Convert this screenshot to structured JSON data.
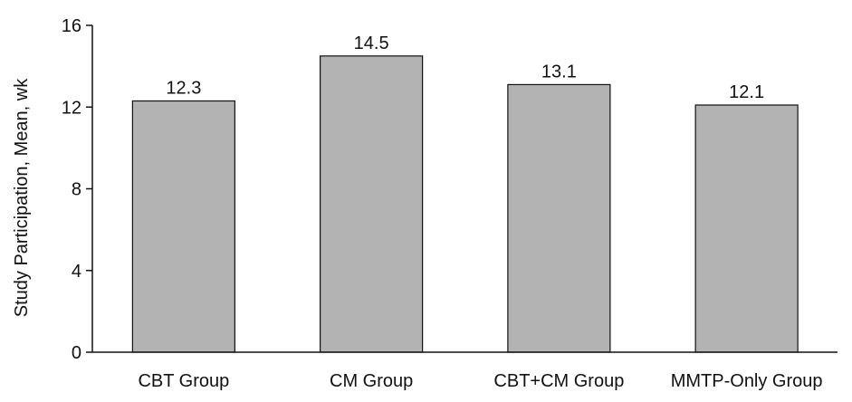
{
  "chart_data": {
    "type": "bar",
    "title": "",
    "xlabel": "",
    "ylabel": "Study Participation, Mean, wk",
    "categories": [
      "CBT Group",
      "CM Group",
      "CBT+CM Group",
      "MMTP-Only Group"
    ],
    "values": [
      12.3,
      14.5,
      13.1,
      12.1
    ],
    "data_labels": [
      "12.3",
      "14.5",
      "13.1",
      "12.1"
    ],
    "ylim": [
      0,
      16
    ],
    "yticks": [
      0,
      4,
      8,
      12,
      16
    ],
    "ytick_labels": [
      "0",
      "4",
      "8",
      "12",
      "16"
    ],
    "grid": false,
    "legend": "none",
    "bar_color": "#b3b3b3",
    "edge_color": "#111111"
  }
}
